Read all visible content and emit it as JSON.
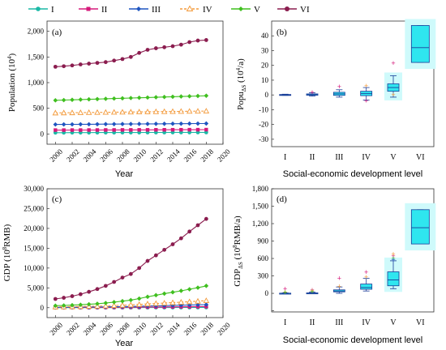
{
  "legend": {
    "items": [
      {
        "label": "I",
        "color": "#1ab9a6",
        "marker": "circle"
      },
      {
        "label": "II",
        "color": "#d6187a",
        "marker": "square"
      },
      {
        "label": "III",
        "color": "#1f55c0",
        "marker": "diamond"
      },
      {
        "label": "IV",
        "color": "#f39a3b",
        "marker": "triangle-open"
      },
      {
        "label": "V",
        "color": "#3fbf1f",
        "marker": "diamond"
      },
      {
        "label": "VI",
        "color": "#8b1d4f",
        "marker": "circle"
      }
    ]
  },
  "chart_data": [
    {
      "id": "a",
      "panel_label": "(a)",
      "type": "line",
      "xlabel": "Year",
      "ylabel_main": "Population (10",
      "ylabel_sup": "4",
      "ylabel_end": ")",
      "xlim": [
        1999,
        2020
      ],
      "ylim": [
        -200,
        2200
      ],
      "x_ticks": [
        2000,
        2002,
        2004,
        2006,
        2008,
        2010,
        2012,
        2014,
        2016,
        2018,
        2020
      ],
      "y_ticks": [
        0,
        500,
        1000,
        1500,
        2000
      ],
      "y_tick_labels": [
        "0",
        "500",
        "1,000",
        "1,500",
        "2,000"
      ],
      "x": [
        2000,
        2001,
        2002,
        2003,
        2004,
        2005,
        2006,
        2007,
        2008,
        2009,
        2010,
        2011,
        2012,
        2013,
        2014,
        2015,
        2016,
        2017,
        2018
      ],
      "series": [
        {
          "name": "I",
          "values": [
            25,
            25,
            26,
            26,
            26,
            27,
            27,
            27,
            28,
            28,
            28,
            29,
            29,
            29,
            30,
            30,
            30,
            31,
            31
          ]
        },
        {
          "name": "II",
          "values": [
            75,
            75,
            76,
            76,
            77,
            77,
            78,
            78,
            79,
            79,
            80,
            80,
            81,
            81,
            82,
            82,
            83,
            83,
            84
          ]
        },
        {
          "name": "III",
          "values": [
            185,
            186,
            187,
            188,
            189,
            190,
            191,
            192,
            193,
            194,
            195,
            196,
            197,
            198,
            199,
            200,
            201,
            202,
            203
          ]
        },
        {
          "name": "IV",
          "values": [
            410,
            412,
            414,
            416,
            418,
            420,
            422,
            424,
            426,
            428,
            430,
            432,
            434,
            436,
            438,
            440,
            442,
            444,
            446
          ]
        },
        {
          "name": "V",
          "values": [
            655,
            660,
            665,
            670,
            675,
            680,
            685,
            690,
            695,
            700,
            705,
            710,
            715,
            720,
            725,
            730,
            735,
            740,
            745
          ]
        },
        {
          "name": "VI",
          "values": [
            1310,
            1320,
            1335,
            1355,
            1370,
            1385,
            1400,
            1430,
            1460,
            1500,
            1580,
            1640,
            1670,
            1690,
            1710,
            1740,
            1790,
            1820,
            1830
          ]
        }
      ]
    },
    {
      "id": "b",
      "panel_label": "(b)",
      "type": "box",
      "xlabel": "Social-economic development level",
      "ylabel_main": "Popu",
      "ylabel_sub": "ΔS",
      "ylabel_mid": " (10",
      "ylabel_sup": "4",
      "ylabel_end": "/a)",
      "ylim": [
        -35,
        50
      ],
      "y_ticks": [
        -30,
        -20,
        -10,
        0,
        10,
        20,
        30,
        40
      ],
      "categories": [
        "I",
        "II",
        "III",
        "IV",
        "V",
        "VI"
      ],
      "boxes": [
        {
          "min": -0.3,
          "q1": -0.1,
          "median": 0.1,
          "q3": 0.3,
          "max": 0.5,
          "outliers": []
        },
        {
          "min": -0.8,
          "q1": -0.2,
          "median": 0.2,
          "q3": 0.7,
          "max": 1.5,
          "outliers": [
            1.8
          ]
        },
        {
          "min": -1.5,
          "q1": -0.3,
          "median": 0.7,
          "q3": 1.8,
          "max": 3.5,
          "outliers": [
            5.5
          ]
        },
        {
          "min": -3.5,
          "q1": -0.5,
          "median": 1.0,
          "q3": 2.5,
          "max": 5.0,
          "outliers": [
            -4.0,
            6.0
          ]
        },
        {
          "min": -1.5,
          "q1": 2.5,
          "median": 5.0,
          "q3": 7.5,
          "max": 13.0,
          "outliers": [
            21.5,
            0
          ]
        },
        {
          "min": 22.0,
          "q1": 22.0,
          "median": 32.0,
          "q3": 47.0,
          "max": 47.0,
          "outliers": []
        }
      ]
    },
    {
      "id": "c",
      "panel_label": "(c)",
      "type": "line",
      "xlabel": "Year",
      "ylabel_main": "GDP (10",
      "ylabel_sup": "8",
      "ylabel_end": "RMB)",
      "xlim": [
        1999,
        2020
      ],
      "ylim": [
        -2500,
        30000
      ],
      "x_ticks": [
        2000,
        2002,
        2004,
        2006,
        2008,
        2010,
        2012,
        2014,
        2016,
        2018,
        2020
      ],
      "y_ticks": [
        0,
        5000,
        10000,
        15000,
        20000,
        25000,
        30000
      ],
      "y_tick_labels": [
        "0",
        "5,000",
        "10,000",
        "15,000",
        "20,000",
        "25,000",
        "30,000"
      ],
      "x": [
        2000,
        2001,
        2002,
        2003,
        2004,
        2005,
        2006,
        2007,
        2008,
        2009,
        2010,
        2011,
        2012,
        2013,
        2014,
        2015,
        2016,
        2017,
        2018
      ],
      "series": [
        {
          "name": "I",
          "values": [
            5,
            6,
            7,
            8,
            10,
            12,
            14,
            16,
            19,
            22,
            26,
            30,
            34,
            38,
            42,
            46,
            50,
            55,
            60
          ]
        },
        {
          "name": "II",
          "values": [
            40,
            45,
            50,
            56,
            63,
            72,
            82,
            94,
            108,
            122,
            138,
            158,
            176,
            192,
            208,
            224,
            240,
            258,
            275
          ]
        },
        {
          "name": "III",
          "values": [
            90,
            100,
            115,
            130,
            150,
            175,
            200,
            235,
            275,
            310,
            360,
            420,
            470,
            520,
            570,
            620,
            670,
            720,
            780
          ]
        },
        {
          "name": "IV",
          "values": [
            200,
            230,
            260,
            300,
            350,
            400,
            460,
            540,
            620,
            700,
            820,
            950,
            1060,
            1170,
            1280,
            1390,
            1510,
            1640,
            1780
          ]
        },
        {
          "name": "V",
          "values": [
            500,
            560,
            640,
            740,
            860,
            1000,
            1180,
            1400,
            1650,
            1920,
            2300,
            2750,
            3150,
            3550,
            3900,
            4250,
            4650,
            5050,
            5500
          ]
        },
        {
          "name": "VI",
          "values": [
            2200,
            2500,
            2900,
            3400,
            4000,
            4700,
            5500,
            6500,
            7600,
            8500,
            10000,
            11800,
            13200,
            14600,
            16000,
            17500,
            19200,
            20800,
            22400
          ]
        }
      ]
    },
    {
      "id": "d",
      "panel_label": "(d)",
      "type": "box",
      "xlabel": "Social-economic development level",
      "ylabel_main": "GDP",
      "ylabel_sub": "ΔS",
      "ylabel_mid": " (10",
      "ylabel_sup": "8",
      "ylabel_end": "RMB/a)",
      "ylim": [
        -320,
        1800
      ],
      "y_ticks": [
        -300,
        0,
        300,
        600,
        900,
        1200,
        1500,
        1800
      ],
      "y_tick_labels": [
        "",
        "0",
        "300",
        "600",
        "900",
        "1,200",
        "1,500",
        "1,800"
      ],
      "categories": [
        "I",
        "II",
        "III",
        "IV",
        "V",
        "VI"
      ],
      "boxes": [
        {
          "min": -5,
          "q1": -2,
          "median": 0,
          "q3": 3,
          "max": 8,
          "outliers": [
            80,
            25,
            15
          ]
        },
        {
          "min": -5,
          "q1": -2,
          "median": 2,
          "q3": 8,
          "max": 20,
          "outliers": [
            60,
            40,
            30
          ]
        },
        {
          "min": 0,
          "q1": 25,
          "median": 40,
          "q3": 60,
          "max": 110,
          "outliers": [
            260,
            120
          ]
        },
        {
          "min": 40,
          "q1": 70,
          "median": 100,
          "q3": 160,
          "max": 260,
          "outliers": [
            360,
            280
          ]
        },
        {
          "min": 80,
          "q1": 130,
          "median": 230,
          "q3": 370,
          "max": 560,
          "outliers": [
            640,
            680,
            600,
            580
          ]
        },
        {
          "min": 850,
          "q1": 850,
          "median": 1130,
          "q3": 1440,
          "max": 1440,
          "outliers": []
        }
      ]
    }
  ]
}
